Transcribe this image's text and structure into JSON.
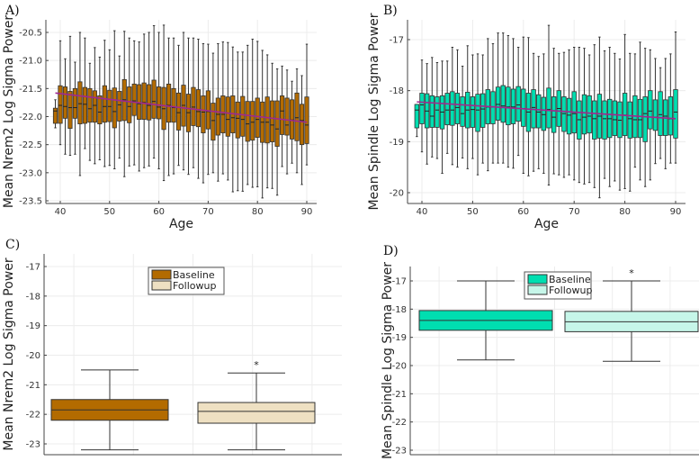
{
  "colors": {
    "nrem_base": "#b36b00",
    "spindle_base": "#00deb0",
    "nrem_follow": "#eee0c2",
    "spindle_follow": "#c6f6e9",
    "trend": "#a0288f",
    "whisker": "#333333"
  },
  "chart_data": [
    {
      "panel": "A)",
      "type": "boxplot",
      "xlabel": "Age",
      "ylabel": "Mean Nrem2 Log Sigma Power",
      "ylim": [
        -23.55,
        -20.3
      ],
      "xlim": [
        37.5,
        91.5
      ],
      "xticks": [
        40,
        50,
        60,
        70,
        80,
        90
      ],
      "yticks": [
        -20.5,
        -21.0,
        -21.5,
        -22.0,
        -22.5,
        -23.0,
        -23.5
      ],
      "ytick_labels": [
        "-20.5",
        "-21.0",
        "-21.5",
        "-22.0",
        "-22.5",
        "-23.0",
        "-23.5"
      ],
      "ages": [
        39,
        40,
        41,
        42,
        43,
        44,
        45,
        46,
        47,
        48,
        49,
        50,
        51,
        52,
        53,
        54,
        55,
        56,
        57,
        58,
        59,
        60,
        61,
        62,
        63,
        64,
        65,
        66,
        67,
        68,
        69,
        70,
        71,
        72,
        73,
        74,
        75,
        76,
        77,
        78,
        79,
        80,
        81,
        82,
        83,
        84,
        85,
        86,
        87,
        88,
        89,
        90
      ],
      "q3": [
        -21.85,
        -21.45,
        -21.47,
        -21.55,
        -21.5,
        -21.38,
        -21.48,
        -21.5,
        -21.54,
        -21.63,
        -21.45,
        -21.53,
        -21.49,
        -21.55,
        -21.34,
        -21.47,
        -21.42,
        -21.43,
        -21.4,
        -21.43,
        -21.35,
        -21.47,
        -21.48,
        -21.42,
        -21.5,
        -21.58,
        -21.44,
        -21.6,
        -21.48,
        -21.52,
        -21.63,
        -21.54,
        -21.76,
        -21.67,
        -21.63,
        -21.65,
        -21.63,
        -21.74,
        -21.64,
        -21.73,
        -21.73,
        -21.67,
        -21.74,
        -21.65,
        -21.72,
        -21.72,
        -21.63,
        -21.67,
        -21.7,
        -21.58,
        -21.78,
        -21.65
      ],
      "median": [
        -21.9,
        -21.8,
        -21.82,
        -21.84,
        -21.84,
        -21.77,
        -21.78,
        -21.86,
        -21.8,
        -21.92,
        -21.82,
        -21.82,
        -21.91,
        -21.79,
        -21.7,
        -21.82,
        -21.72,
        -21.77,
        -21.75,
        -21.8,
        -21.73,
        -21.83,
        -21.86,
        -21.8,
        -21.84,
        -21.93,
        -21.8,
        -21.93,
        -21.83,
        -21.91,
        -21.92,
        -21.91,
        -22.07,
        -21.96,
        -21.96,
        -22.05,
        -22.02,
        -22.03,
        -22.05,
        -22.13,
        -22.1,
        -22.05,
        -22.1,
        -22.1,
        -22.15,
        -22.22,
        -21.9,
        -22.15,
        -22.06,
        -22.02,
        -22.07,
        -22.15
      ],
      "q1": [
        -22.12,
        -22.12,
        -22.03,
        -22.21,
        -22.03,
        -22.13,
        -22.12,
        -22.1,
        -22.1,
        -22.13,
        -22.1,
        -22.09,
        -22.2,
        -22.08,
        -22.07,
        -22.11,
        -21.98,
        -22.05,
        -22.05,
        -22.06,
        -22.03,
        -22.04,
        -22.23,
        -22.1,
        -22.1,
        -22.24,
        -22.17,
        -22.27,
        -22.16,
        -22.18,
        -22.29,
        -22.22,
        -22.42,
        -22.33,
        -22.29,
        -22.35,
        -22.29,
        -22.38,
        -22.35,
        -22.44,
        -22.42,
        -22.37,
        -22.46,
        -22.47,
        -22.45,
        -22.53,
        -22.32,
        -22.33,
        -22.4,
        -22.43,
        -22.5,
        -22.48
      ],
      "max": [
        -21.7,
        -20.65,
        -20.97,
        -20.57,
        -21.03,
        -20.5,
        -20.6,
        -21.05,
        -20.77,
        -20.94,
        -20.64,
        -20.81,
        -20.47,
        -20.92,
        -20.48,
        -20.6,
        -20.65,
        -20.67,
        -20.53,
        -20.5,
        -20.38,
        -20.5,
        -20.37,
        -20.6,
        -20.6,
        -20.73,
        -20.5,
        -20.6,
        -20.6,
        -20.62,
        -20.7,
        -20.71,
        -20.87,
        -20.7,
        -20.67,
        -20.68,
        -20.76,
        -20.85,
        -20.85,
        -20.73,
        -20.62,
        -20.66,
        -20.82,
        -20.9,
        -21.05,
        -21.15,
        -21.1,
        -21.17,
        -21.37,
        -21.15,
        -21.27,
        -20.71
      ],
      "min": [
        -22.2,
        -22.5,
        -22.67,
        -22.69,
        -22.67,
        -23.05,
        -22.57,
        -22.78,
        -22.84,
        -22.77,
        -22.89,
        -22.87,
        -22.93,
        -22.74,
        -23.07,
        -22.88,
        -22.86,
        -22.97,
        -22.91,
        -22.88,
        -22.74,
        -22.93,
        -23.14,
        -23.05,
        -23.02,
        -22.87,
        -22.95,
        -23.03,
        -22.91,
        -23.1,
        -23.18,
        -23.03,
        -23.0,
        -23.15,
        -23.02,
        -23.13,
        -23.34,
        -23.32,
        -23.33,
        -23.21,
        -23.26,
        -23.25,
        -23.45,
        -23.27,
        -23.28,
        -23.4,
        -22.89,
        -23.02,
        -22.83,
        -23.0,
        -23.21,
        -22.86
      ],
      "trend": {
        "x": [
          39,
          90
        ],
        "y": [
          -21.58,
          -22.1
        ]
      }
    },
    {
      "panel": "B)",
      "type": "boxplot",
      "xlabel": "Age",
      "ylabel": "Mean Spindle Log Sigma Power",
      "ylim": [
        -20.22,
        -16.55
      ],
      "xlim": [
        37.5,
        91.5
      ],
      "xticks": [
        40,
        50,
        60,
        70,
        80,
        90
      ],
      "yticks": [
        -17,
        -18,
        -19,
        -20
      ],
      "ytick_labels": [
        "-17",
        "-18",
        "-19",
        "-20"
      ],
      "ages": [
        39,
        40,
        41,
        42,
        43,
        44,
        45,
        46,
        47,
        48,
        49,
        50,
        51,
        52,
        53,
        54,
        55,
        56,
        57,
        58,
        59,
        60,
        61,
        62,
        63,
        64,
        65,
        66,
        67,
        68,
        69,
        70,
        71,
        72,
        73,
        74,
        75,
        76,
        77,
        78,
        79,
        80,
        81,
        82,
        83,
        84,
        85,
        86,
        87,
        88,
        89,
        90
      ],
      "q3": [
        -18.27,
        -18.05,
        -18.06,
        -18.1,
        -18.12,
        -18.1,
        -18.05,
        -18.02,
        -18.05,
        -18.12,
        -18.03,
        -18.12,
        -18.07,
        -18.06,
        -17.98,
        -18.02,
        -17.93,
        -17.9,
        -17.93,
        -17.97,
        -17.92,
        -17.97,
        -18.05,
        -17.98,
        -18.08,
        -18.13,
        -17.95,
        -18.12,
        -18.0,
        -18.12,
        -18.15,
        -18.02,
        -18.2,
        -18.08,
        -18.1,
        -18.2,
        -18.07,
        -18.2,
        -18.17,
        -18.2,
        -18.22,
        -18.05,
        -18.22,
        -18.1,
        -18.17,
        -18.12,
        -18.0,
        -18.18,
        -18.02,
        -18.18,
        -18.12,
        -17.98
      ],
      "median": [
        -18.38,
        -18.28,
        -18.4,
        -18.5,
        -18.38,
        -18.42,
        -18.38,
        -18.38,
        -18.33,
        -18.45,
        -18.38,
        -18.37,
        -18.38,
        -18.36,
        -18.32,
        -18.32,
        -18.27,
        -18.3,
        -18.32,
        -18.32,
        -18.28,
        -18.35,
        -18.42,
        -18.33,
        -18.42,
        -18.47,
        -18.37,
        -18.52,
        -18.35,
        -18.45,
        -18.48,
        -18.45,
        -18.57,
        -18.52,
        -18.5,
        -18.55,
        -18.5,
        -18.55,
        -18.55,
        -18.57,
        -18.58,
        -18.48,
        -18.55,
        -18.57,
        -18.57,
        -18.45,
        -18.4,
        -18.52,
        -18.47,
        -18.5,
        -18.55,
        -18.42
      ],
      "q1": [
        -18.73,
        -18.65,
        -18.73,
        -18.72,
        -18.72,
        -18.75,
        -18.67,
        -18.68,
        -18.65,
        -18.7,
        -18.73,
        -18.72,
        -18.8,
        -18.72,
        -18.65,
        -18.65,
        -18.58,
        -18.62,
        -18.67,
        -18.65,
        -18.6,
        -18.7,
        -18.8,
        -18.73,
        -18.73,
        -18.78,
        -18.73,
        -18.82,
        -18.7,
        -18.8,
        -18.85,
        -18.83,
        -18.95,
        -18.85,
        -18.83,
        -18.95,
        -18.93,
        -18.95,
        -18.92,
        -18.88,
        -18.92,
        -18.88,
        -18.93,
        -18.92,
        -18.92,
        -19.0,
        -18.75,
        -18.78,
        -18.88,
        -18.88,
        -18.87,
        -18.93
      ],
      "max": [
        -18.27,
        -17.4,
        -17.47,
        -17.35,
        -17.45,
        -17.42,
        -17.42,
        -17.15,
        -17.2,
        -17.52,
        -17.12,
        -17.3,
        -17.28,
        -17.3,
        -16.98,
        -17.08,
        -16.87,
        -16.87,
        -16.92,
        -16.98,
        -17.15,
        -16.95,
        -16.96,
        -17.27,
        -17.33,
        -17.28,
        -16.72,
        -17.17,
        -17.27,
        -17.25,
        -17.2,
        -17.15,
        -17.15,
        -17.17,
        -17.3,
        -17.1,
        -16.95,
        -17.22,
        -17.15,
        -17.27,
        -17.38,
        -16.9,
        -17.27,
        -17.28,
        -17.05,
        -17.17,
        -17.2,
        -17.37,
        -17.55,
        -17.37,
        -17.28,
        -16.85
      ],
      "min": [
        -18.9,
        -19.2,
        -19.44,
        -19.3,
        -19.33,
        -19.62,
        -19.23,
        -19.45,
        -19.5,
        -19.32,
        -19.53,
        -19.33,
        -19.65,
        -19.42,
        -19.57,
        -19.42,
        -19.42,
        -19.42,
        -19.5,
        -19.52,
        -19.27,
        -19.62,
        -19.67,
        -19.58,
        -19.53,
        -19.62,
        -19.85,
        -19.63,
        -19.65,
        -19.7,
        -19.65,
        -19.75,
        -19.8,
        -19.83,
        -19.8,
        -19.9,
        -20.1,
        -19.72,
        -19.88,
        -19.77,
        -19.95,
        -19.92,
        -19.97,
        -19.5,
        -19.75,
        -19.88,
        -19.75,
        -19.43,
        -19.33,
        -19.53,
        -19.42,
        -19.42
      ],
      "trend": {
        "x": [
          39,
          90
        ],
        "y": [
          -18.22,
          -18.55
        ]
      }
    },
    {
      "panel": "C)",
      "type": "boxplot",
      "ylabel": "Mean Nrem2 Log Sigma Power",
      "ylim": [
        -23.35,
        -16.45
      ],
      "yticks": [
        -17,
        -18,
        -19,
        -20,
        -21,
        -22,
        -23
      ],
      "ytick_labels": [
        "-17",
        "-18",
        "-19",
        "-20",
        "-21",
        "-22",
        "-23"
      ],
      "legend": [
        "Baseline",
        "Followup"
      ],
      "legend_position": "top-center",
      "annotation": "*",
      "groups": [
        {
          "name": "Baseline",
          "max": -20.5,
          "q3": -21.5,
          "median": -21.85,
          "q1": -22.2,
          "min": -23.2
        },
        {
          "name": "Followup",
          "max": -20.6,
          "q3": -21.6,
          "median": -21.9,
          "q1": -22.3,
          "min": -23.2
        }
      ]
    },
    {
      "panel": "D)",
      "type": "boxplot",
      "ylabel": "Mean Spindle Log Sigma Power",
      "ylim": [
        -23.3,
        -16.5
      ],
      "yticks": [
        -17,
        -18,
        -19,
        -20,
        -21,
        -22,
        -23
      ],
      "ytick_labels": [
        "-17",
        "-18",
        "-19",
        "-20",
        "-21",
        "-22",
        "-23"
      ],
      "legend": [
        "Baseline",
        "Followup"
      ],
      "legend_position": "top-center",
      "annotation": "*",
      "groups": [
        {
          "name": "Baseline",
          "max": -17.0,
          "q3": -18.05,
          "median": -18.4,
          "q1": -18.75,
          "min": -19.8
        },
        {
          "name": "Followup",
          "max": -17.0,
          "q3": -18.08,
          "median": -18.45,
          "q1": -18.8,
          "min": -19.85
        }
      ]
    }
  ]
}
